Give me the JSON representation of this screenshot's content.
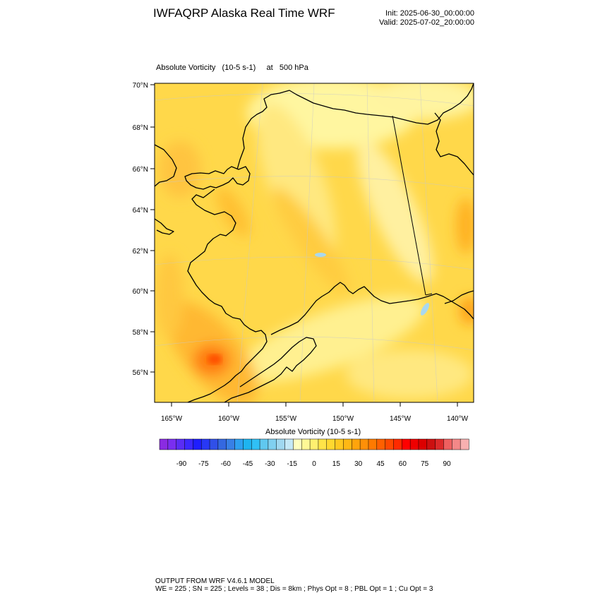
{
  "header": {
    "title": "IWFAQRP Alaska Real Time WRF",
    "init": "Init: 2025-06-30_00:00:00",
    "valid": "Valid: 2025-07-02_20:00:00"
  },
  "field": {
    "name": "Absolute Vorticity",
    "units": "(10-5 s-1)",
    "level_prefix": "at",
    "level": "500 hPa"
  },
  "axes": {
    "lat_labels": [
      "70°N",
      "68°N",
      "66°N",
      "64°N",
      "62°N",
      "60°N",
      "58°N",
      "56°N"
    ],
    "lon_labels": [
      "165°W",
      "160°W",
      "155°W",
      "150°W",
      "145°W",
      "140°W"
    ]
  },
  "colorbar": {
    "title": "Absolute Vorticity  (10-5 s-1)",
    "tick_labels": [
      "-90",
      "-75",
      "-60",
      "-45",
      "-30",
      "-15",
      "0",
      "15",
      "30",
      "45",
      "60",
      "75",
      "90"
    ],
    "colors": [
      "#8a2be2",
      "#7a2ef0",
      "#5a2df5",
      "#3c28ff",
      "#1e1eff",
      "#2838f5",
      "#3050e8",
      "#3468e0",
      "#3880e6",
      "#2ea0f0",
      "#1eb4f0",
      "#30c0f5",
      "#60c8f0",
      "#80d0f0",
      "#a0d8f0",
      "#c4e8f6",
      "#ffffc0",
      "#fff896",
      "#fff070",
      "#ffe448",
      "#ffd830",
      "#ffc820",
      "#ffb814",
      "#ffa40c",
      "#ff9008",
      "#ff7a00",
      "#ff6000",
      "#ff4800",
      "#ff2a00",
      "#ff0000",
      "#ee0000",
      "#dc0000",
      "#cc1010",
      "#dc2a2a",
      "#ee6060",
      "#f48888",
      "#f8b0b0"
    ]
  },
  "footer": {
    "line1": "OUTPUT FROM WRF V4.6.1 MODEL",
    "line2": "WE = 225 ; SN = 225 ; Levels = 38 ; Dis = 8km ; Phys Opt = 8 ; PBL Opt = 1 ; Cu Opt = 3"
  }
}
